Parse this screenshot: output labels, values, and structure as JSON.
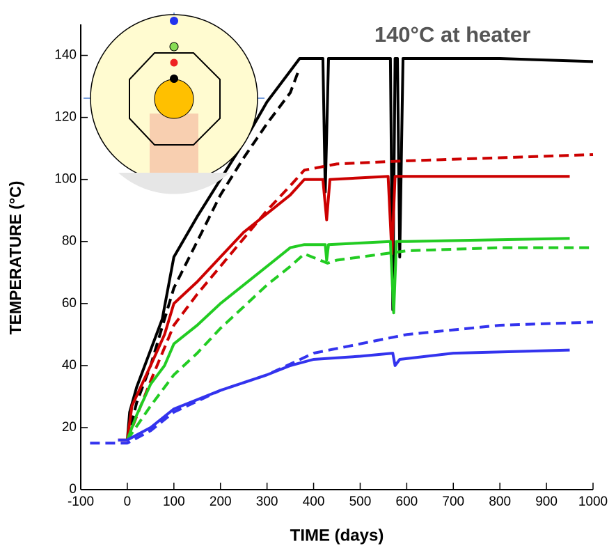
{
  "chart_data": {
    "type": "line",
    "title": "140°C at heater",
    "x_label": "TIME (days)",
    "y_label": "TEMPERATURE (°C)",
    "xlim": [
      -100,
      1000
    ],
    "xticks": [
      -100,
      0,
      100,
      200,
      300,
      400,
      500,
      600,
      700,
      800,
      900,
      1000
    ],
    "ylim": [
      0,
      150
    ],
    "yticks": [
      0,
      20,
      40,
      60,
      80,
      100,
      120,
      140
    ],
    "series": [
      {
        "color": "#000000",
        "dash": false,
        "x": [
          0,
          5,
          20,
          50,
          75,
          100,
          150,
          200,
          250,
          300,
          350,
          370,
          420,
          425,
          432,
          565,
          570,
          575,
          580,
          585,
          592,
          700,
          800,
          1000
        ],
        "values": [
          16,
          25,
          33,
          45,
          55,
          75,
          88,
          100,
          112,
          125,
          135,
          139,
          139,
          96,
          139,
          139,
          58,
          139,
          139,
          75,
          139,
          139,
          139,
          138
        ]
      },
      {
        "color": "#000000",
        "dash": true,
        "x": [
          0,
          20,
          50,
          100,
          150,
          200,
          250,
          300,
          350,
          370
        ],
        "values": [
          16,
          28,
          40,
          65,
          80,
          95,
          107,
          118,
          128,
          136
        ]
      },
      {
        "color": "#cc0000",
        "dash": false,
        "x": [
          -20,
          0,
          10,
          50,
          80,
          100,
          150,
          200,
          250,
          300,
          350,
          380,
          420,
          428,
          435,
          560,
          568,
          575,
          600,
          950
        ],
        "values": [
          16,
          16,
          27,
          40,
          50,
          60,
          67,
          75,
          83,
          89,
          95,
          100,
          100,
          87,
          100,
          101,
          76,
          101,
          101,
          101
        ]
      },
      {
        "color": "#cc0000",
        "dash": true,
        "x": [
          0,
          50,
          100,
          150,
          200,
          250,
          300,
          350,
          380,
          450,
          600,
          800,
          1000
        ],
        "values": [
          16,
          35,
          53,
          63,
          72,
          81,
          90,
          98,
          103,
          105,
          106,
          107,
          108
        ]
      },
      {
        "color": "#22cc22",
        "dash": false,
        "x": [
          0,
          20,
          50,
          80,
          100,
          150,
          200,
          250,
          300,
          350,
          380,
          425,
          428,
          432,
          565,
          572,
          578,
          600,
          950
        ],
        "values": [
          16,
          24,
          34,
          40,
          47,
          53,
          60,
          66,
          72,
          78,
          79,
          79,
          74,
          79,
          80,
          57,
          80,
          80,
          81
        ]
      },
      {
        "color": "#22cc22",
        "dash": true,
        "x": [
          0,
          50,
          100,
          150,
          200,
          250,
          300,
          350,
          380,
          430,
          450,
          600,
          800,
          1000
        ],
        "values": [
          16,
          27,
          37,
          44,
          52,
          59,
          66,
          72,
          76,
          73,
          74,
          77,
          78,
          78
        ]
      },
      {
        "color": "#3333ee",
        "dash": false,
        "x": [
          -20,
          0,
          50,
          100,
          150,
          200,
          300,
          350,
          400,
          500,
          570,
          575,
          585,
          700,
          950
        ],
        "values": [
          16,
          16,
          20,
          26,
          29,
          32,
          37,
          40,
          42,
          43,
          44,
          40,
          42,
          44,
          45
        ]
      },
      {
        "color": "#3333ee",
        "dash": true,
        "x": [
          -80,
          0,
          50,
          100,
          200,
          300,
          400,
          500,
          600,
          800,
          1000
        ],
        "values": [
          15,
          15,
          19,
          25,
          32,
          37,
          44,
          47,
          50,
          53,
          54
        ]
      }
    ]
  }
}
